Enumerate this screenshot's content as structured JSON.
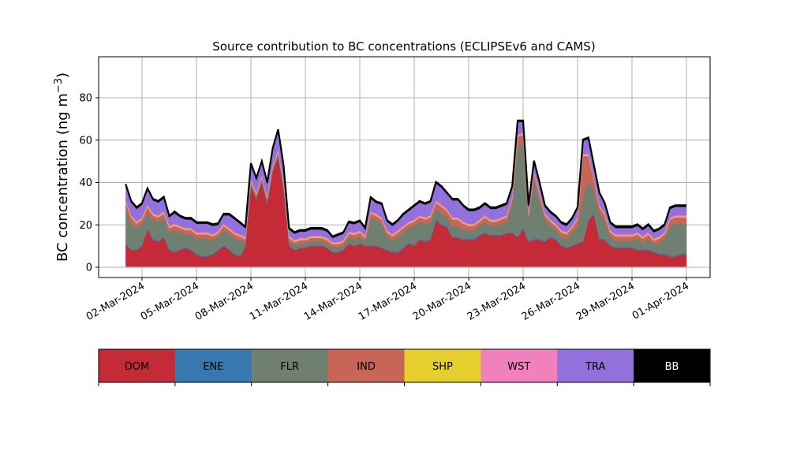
{
  "chart_data": {
    "type": "area",
    "stacked": true,
    "title": "Source contribution to BC concentrations (ECLIPSEv6 and CAMS)",
    "xlabel": "",
    "ylabel": "BC concentration (ng m⁻³)",
    "ylabel_main": "BC concentration (ng m",
    "ylabel_sup": "−3",
    "ylabel_close": ")",
    "ylim": [
      -5,
      100
    ],
    "yticks": [
      0,
      20,
      40,
      60,
      80
    ],
    "ytick_labels": [
      "0",
      "20",
      "40",
      "60",
      "80"
    ],
    "x_unit": "days since 01-Mar-2024",
    "xlim": [
      -1.0,
      32.5
    ],
    "xticks": [
      1,
      4,
      7,
      10,
      13,
      16,
      19,
      22,
      25,
      28,
      31
    ],
    "xtick_labels": [
      "02-Mar-2024",
      "05-Mar-2024",
      "08-Mar-2024",
      "11-Mar-2024",
      "14-Mar-2024",
      "17-Mar-2024",
      "20-Mar-2024",
      "23-Mar-2024",
      "26-Mar-2024",
      "29-Mar-2024",
      "01-Apr-2024"
    ],
    "grid": true,
    "x": [
      0.1,
      0.4,
      0.7,
      1.0,
      1.3,
      1.6,
      1.9,
      2.2,
      2.5,
      2.8,
      3.1,
      3.4,
      3.7,
      4.0,
      4.3,
      4.6,
      4.9,
      5.2,
      5.5,
      5.8,
      6.1,
      6.4,
      6.7,
      7.0,
      7.3,
      7.6,
      7.9,
      8.2,
      8.5,
      8.8,
      9.1,
      9.4,
      9.7,
      10.0,
      10.3,
      10.6,
      10.9,
      11.2,
      11.5,
      11.8,
      12.1,
      12.4,
      12.7,
      13.0,
      13.3,
      13.6,
      13.9,
      14.2,
      14.5,
      14.8,
      15.1,
      15.4,
      15.7,
      16.0,
      16.3,
      16.6,
      16.9,
      17.2,
      17.5,
      17.8,
      18.1,
      18.4,
      18.7,
      19.0,
      19.3,
      19.6,
      19.9,
      20.2,
      20.5,
      20.8,
      21.1,
      21.4,
      21.7,
      22.0,
      22.3,
      22.6,
      22.9,
      23.2,
      23.5,
      23.8,
      24.1,
      24.4,
      24.7,
      25.0,
      25.3,
      25.6,
      25.9,
      26.2,
      26.5,
      26.8,
      27.1,
      27.4,
      27.7,
      28.0,
      28.3,
      28.6,
      28.9,
      29.2,
      29.5,
      29.8,
      30.1,
      30.4,
      30.7,
      31.0
    ],
    "series": [
      {
        "name": "DOM",
        "color": "#c52a37",
        "values": [
          11,
          8,
          8,
          10,
          18,
          13,
          12,
          14,
          8,
          7,
          8,
          9,
          8,
          6,
          5,
          5,
          6,
          8,
          10,
          8,
          6,
          5,
          10,
          38,
          32,
          40,
          30,
          45,
          52,
          37,
          10,
          8,
          9,
          9,
          10,
          10,
          10,
          9,
          7,
          7,
          8,
          11,
          10,
          11,
          10,
          10,
          10,
          9,
          8,
          7,
          7,
          9,
          11,
          10,
          13,
          12,
          13,
          22,
          20,
          19,
          14,
          14,
          13,
          13,
          13,
          15,
          16,
          15,
          15,
          15,
          16,
          16,
          14,
          18,
          12,
          13,
          13,
          12,
          14,
          13,
          10,
          9,
          10,
          11,
          12,
          22,
          25,
          13,
          13,
          10,
          9,
          9,
          9,
          9,
          8,
          8,
          8,
          7,
          6,
          6,
          5,
          5,
          6,
          6
        ]
      },
      {
        "name": "ENE",
        "color": "#3778b0",
        "values": [
          0.5,
          0.5,
          0.5,
          0.5,
          0.5,
          0.5,
          0.5,
          0.5,
          0.5,
          0.5,
          0.5,
          0.5,
          0.5,
          0.5,
          0.5,
          0.5,
          0.5,
          0.5,
          0.5,
          0.5,
          0.5,
          0.5,
          0.3,
          0.3,
          0.3,
          0.3,
          0.3,
          0.3,
          0.3,
          0.3,
          0.3,
          0.3,
          0.3,
          0.3,
          0.3,
          0.3,
          0.3,
          0.3,
          0.3,
          0.3,
          0.3,
          0.3,
          0.3,
          0.3,
          0.3,
          0.3,
          0.3,
          0.5,
          0.5,
          0.5,
          0.5,
          0.5,
          0.5,
          0.5,
          0.5,
          0.5,
          0.5,
          0.5,
          0.5,
          0.5,
          0.5,
          0.5,
          0.5,
          0.5,
          0.5,
          0.5,
          0.5,
          0.5,
          0.5,
          0.5,
          0.5,
          0.5,
          0.5,
          0.5,
          0.5,
          0.5,
          0.5,
          0.5,
          0.5,
          0.5,
          0.5,
          0.5,
          0.5,
          0.5,
          0.5,
          0.5,
          0.5,
          0.5,
          0.5,
          0.5,
          0.5,
          0.5,
          0.5,
          0.5,
          0.5,
          0.5,
          0.5,
          0.5,
          0.5,
          0.5,
          0.5,
          0.5,
          0.5,
          0.5
        ]
      },
      {
        "name": "FLR",
        "color": "#6f8070",
        "values": [
          16,
          12,
          10,
          10,
          7,
          9,
          9,
          9,
          8,
          10,
          8,
          6,
          7,
          7,
          8,
          8,
          6,
          6,
          7,
          7,
          7,
          7,
          2,
          1,
          1,
          1,
          1,
          1,
          1,
          1,
          2,
          2,
          2,
          2,
          2,
          2,
          2,
          2,
          2,
          2,
          2,
          3,
          3,
          3,
          2,
          13,
          12,
          11,
          6,
          5,
          7,
          7,
          7,
          9,
          8,
          8,
          8,
          5,
          5,
          4,
          5,
          5,
          4,
          4,
          4,
          4,
          5,
          4,
          4,
          5,
          5,
          13,
          42,
          40,
          10,
          28,
          18,
          10,
          5,
          4,
          4,
          4,
          6,
          8,
          20,
          18,
          11,
          12,
          8,
          4,
          3,
          3,
          3,
          3,
          5,
          3,
          5,
          3,
          5,
          7,
          14,
          15,
          14,
          14
        ]
      },
      {
        "name": "IND",
        "color": "#c76556",
        "values": [
          3,
          3,
          2,
          2,
          3,
          2,
          2,
          2,
          2,
          2,
          2,
          2,
          2,
          2,
          2,
          2,
          2,
          1.5,
          2,
          2,
          2,
          2,
          1,
          1,
          1,
          1,
          1,
          1,
          1,
          1,
          1.5,
          1.5,
          1.5,
          1.5,
          1.5,
          1.5,
          1.5,
          1.5,
          1.5,
          1.5,
          1.5,
          1.5,
          2,
          2,
          1.5,
          2,
          2,
          2,
          2,
          2,
          2,
          2,
          2,
          2,
          2,
          2,
          2,
          3,
          3,
          3,
          3,
          3,
          3,
          2,
          2,
          2,
          2,
          2,
          2,
          2,
          2,
          3,
          5,
          4,
          2,
          3,
          3,
          2,
          2,
          2,
          2,
          2,
          2,
          3,
          20,
          12,
          5,
          3,
          3,
          2,
          2,
          2,
          2,
          2,
          2,
          2,
          2,
          2,
          2,
          2,
          3,
          3,
          3,
          3
        ]
      },
      {
        "name": "SHP",
        "color": "#e5d02e",
        "values": [
          0.3,
          0.3,
          0.3,
          0.3,
          0.3,
          0.3,
          0.3,
          0.3,
          0.3,
          0.3,
          0.3,
          0.3,
          0.3,
          0.3,
          0.3,
          0.3,
          0.3,
          0.3,
          0.3,
          0.3,
          0.3,
          0.3,
          0.3,
          0.3,
          0.3,
          0.3,
          0.3,
          0.3,
          0.3,
          0.3,
          0.3,
          0.3,
          0.3,
          0.3,
          0.3,
          0.3,
          0.3,
          0.3,
          0.3,
          0.3,
          0.3,
          0.3,
          0.3,
          0.3,
          0.3,
          0.3,
          0.3,
          0.3,
          0.3,
          0.3,
          0.3,
          0.3,
          0.3,
          0.3,
          0.3,
          0.3,
          0.3,
          0.3,
          0.3,
          0.3,
          0.3,
          0.3,
          0.3,
          0.3,
          0.3,
          0.3,
          0.3,
          0.3,
          0.3,
          0.3,
          0.3,
          0.3,
          0.3,
          0.3,
          0.3,
          0.3,
          0.3,
          0.3,
          0.3,
          0.3,
          0.3,
          0.3,
          0.3,
          0.3,
          0.3,
          0.3,
          0.3,
          0.3,
          0.3,
          0.3,
          0.3,
          0.3,
          0.3,
          0.3,
          0.3,
          0.3,
          0.3,
          0.3,
          0.3,
          0.3,
          0.3,
          0.3,
          0.3,
          0.3
        ]
      },
      {
        "name": "WST",
        "color": "#f280bd",
        "values": [
          0.7,
          0.7,
          0.7,
          0.7,
          0.7,
          0.7,
          0.7,
          0.7,
          0.7,
          0.7,
          0.7,
          0.7,
          0.7,
          0.7,
          0.7,
          0.7,
          0.7,
          0.7,
          0.7,
          0.7,
          0.7,
          0.7,
          0.7,
          0.7,
          0.7,
          0.7,
          0.7,
          0.7,
          0.7,
          0.7,
          0.7,
          0.7,
          0.7,
          0.7,
          0.7,
          0.7,
          0.7,
          0.7,
          0.7,
          0.7,
          0.7,
          0.7,
          0.7,
          0.7,
          0.7,
          0.7,
          0.7,
          0.7,
          0.7,
          0.7,
          0.7,
          0.7,
          0.7,
          0.7,
          0.7,
          0.7,
          0.7,
          0.7,
          0.7,
          0.7,
          0.7,
          0.7,
          0.7,
          0.7,
          0.7,
          0.7,
          0.7,
          0.7,
          0.7,
          0.7,
          0.7,
          0.7,
          0.7,
          0.7,
          0.7,
          0.7,
          0.7,
          0.7,
          0.7,
          0.7,
          0.7,
          0.7,
          0.7,
          0.7,
          0.7,
          0.7,
          0.7,
          0.7,
          0.7,
          0.7,
          0.7,
          0.7,
          0.7,
          0.7,
          0.7,
          0.7,
          0.7,
          0.7,
          0.7,
          0.7,
          0.7,
          0.7,
          0.7,
          0.7
        ]
      },
      {
        "name": "TRA",
        "color": "#9370db",
        "values": [
          7,
          6,
          6,
          6,
          7,
          6,
          6,
          6,
          4,
          5,
          4,
          4,
          4,
          4,
          4,
          4,
          4,
          3,
          4,
          6,
          6,
          5,
          4,
          7,
          6,
          6,
          6,
          7,
          9,
          7,
          3,
          3,
          3,
          3,
          3,
          3,
          3,
          3,
          2,
          3,
          3,
          4,
          4,
          4,
          3,
          6,
          5,
          6,
          4,
          4,
          4,
          5,
          5,
          6,
          6,
          6,
          6,
          8,
          8,
          7,
          8,
          8,
          7,
          6,
          6,
          5,
          5,
          5,
          5,
          5,
          5,
          4,
          6,
          5,
          3,
          4,
          4,
          3,
          3,
          3,
          3,
          3,
          3,
          4,
          6,
          7,
          5,
          5,
          4,
          3,
          3,
          3,
          3,
          3,
          3,
          3,
          3,
          3,
          3,
          3,
          4,
          4,
          4,
          4
        ]
      },
      {
        "name": "BB",
        "color": "#000000",
        "values": [
          0.8,
          0.8,
          0.8,
          0.8,
          0.8,
          0.8,
          0.8,
          0.8,
          0.8,
          0.8,
          0.8,
          0.8,
          0.8,
          0.8,
          0.8,
          0.8,
          0.8,
          0.8,
          0.8,
          0.8,
          0.8,
          0.8,
          0.8,
          0.8,
          0.8,
          0.8,
          0.8,
          0.8,
          0.8,
          0.8,
          0.8,
          0.8,
          0.8,
          0.8,
          0.8,
          0.8,
          0.8,
          0.8,
          0.8,
          0.8,
          0.8,
          0.8,
          0.8,
          0.8,
          0.8,
          0.8,
          0.8,
          0.8,
          0.8,
          0.8,
          0.8,
          0.8,
          0.8,
          0.8,
          0.8,
          0.8,
          0.8,
          0.8,
          0.8,
          0.8,
          0.8,
          0.8,
          0.8,
          0.8,
          0.8,
          0.8,
          0.8,
          0.8,
          0.8,
          0.8,
          0.8,
          0.8,
          0.8,
          0.8,
          0.8,
          0.8,
          0.8,
          0.8,
          0.8,
          0.8,
          0.8,
          0.8,
          0.8,
          0.8,
          0.8,
          0.8,
          0.8,
          0.8,
          0.8,
          0.8,
          0.8,
          0.8,
          0.8,
          0.8,
          0.8,
          0.8,
          0.8,
          0.8,
          0.8,
          0.8,
          0.8,
          0.8,
          0.8,
          0.8
        ]
      }
    ],
    "legend": {
      "placement": "bottom",
      "entries": [
        {
          "label": "DOM",
          "color": "#c52a37",
          "text_color": "#000000"
        },
        {
          "label": "ENE",
          "color": "#3778b0",
          "text_color": "#000000"
        },
        {
          "label": "FLR",
          "color": "#6f8070",
          "text_color": "#000000"
        },
        {
          "label": "IND",
          "color": "#c76556",
          "text_color": "#000000"
        },
        {
          "label": "SHP",
          "color": "#e5d02e",
          "text_color": "#000000"
        },
        {
          "label": "WST",
          "color": "#f280bd",
          "text_color": "#000000"
        },
        {
          "label": "TRA",
          "color": "#9370db",
          "text_color": "#000000"
        },
        {
          "label": "BB",
          "color": "#000000",
          "text_color": "#ffffff"
        }
      ]
    }
  }
}
